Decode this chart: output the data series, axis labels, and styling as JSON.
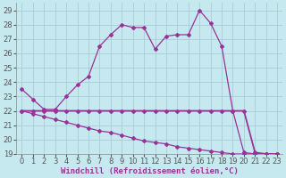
{
  "xlabel": "Windchill (Refroidissement éolien,°C)",
  "background_color": "#c6e8ef",
  "grid_color": "#a8cdd6",
  "line_color": "#993399",
  "xlim": [
    -0.5,
    23.5
  ],
  "ylim": [
    19,
    29.5
  ],
  "xticks": [
    0,
    1,
    2,
    3,
    4,
    5,
    6,
    7,
    8,
    9,
    10,
    11,
    12,
    13,
    14,
    15,
    16,
    17,
    18,
    19,
    20,
    21,
    22,
    23
  ],
  "yticks": [
    19,
    20,
    21,
    22,
    23,
    24,
    25,
    26,
    27,
    28,
    29
  ],
  "curve1_x": [
    0,
    1,
    2,
    3,
    4,
    5,
    6,
    7,
    8,
    9,
    10,
    11,
    12,
    13,
    14,
    15,
    16,
    17,
    18,
    19,
    20,
    21,
    22,
    23
  ],
  "curve1_y": [
    23.5,
    22.8,
    22.1,
    22.1,
    23.0,
    23.8,
    24.4,
    26.5,
    27.3,
    28.0,
    27.8,
    27.8,
    26.3,
    27.2,
    27.3,
    27.3,
    29.0,
    28.1,
    26.5,
    22.0,
    19.1,
    19.0,
    19.0,
    19.0
  ],
  "curve2_x": [
    0,
    1,
    2,
    3,
    4,
    5,
    6,
    7,
    8,
    9,
    10,
    11,
    12,
    13,
    14,
    15,
    16,
    17,
    18,
    19,
    20,
    21,
    22,
    23
  ],
  "curve2_y": [
    22.0,
    22.0,
    22.0,
    22.0,
    22.0,
    22.0,
    22.0,
    22.0,
    22.0,
    22.0,
    22.0,
    22.0,
    22.0,
    22.0,
    22.0,
    22.0,
    22.0,
    22.0,
    22.0,
    22.0,
    22.0,
    19.1,
    19.0,
    19.0
  ],
  "curve3_x": [
    0,
    1,
    2,
    3,
    4,
    5,
    6,
    7,
    8,
    9,
    10,
    11,
    12,
    13,
    14,
    15,
    16,
    17,
    18,
    19,
    20,
    21,
    22,
    23
  ],
  "curve3_y": [
    22.0,
    21.8,
    21.6,
    21.4,
    21.2,
    21.0,
    20.8,
    20.6,
    20.5,
    20.3,
    20.1,
    19.9,
    19.8,
    19.7,
    19.5,
    19.4,
    19.3,
    19.2,
    19.1,
    19.0,
    19.0,
    19.0,
    19.0,
    19.0
  ],
  "font_size_xlabel": 6.5,
  "font_size_ticks": 6,
  "marker": "D",
  "marker_size": 2.0,
  "linewidth": 0.9
}
